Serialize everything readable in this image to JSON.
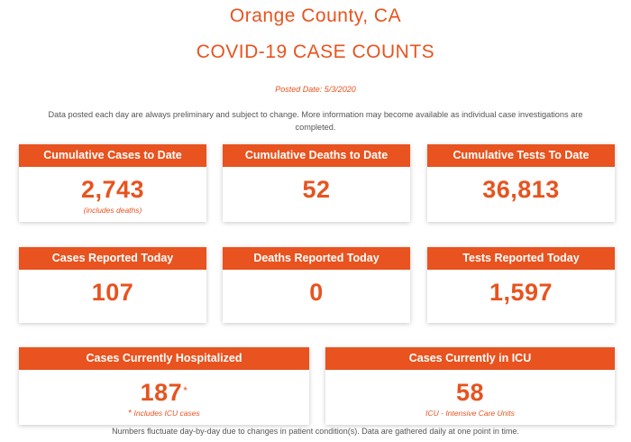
{
  "header": {
    "title": "Orange County, CA",
    "subtitle": "COVID-19 CASE COUNTS",
    "posted_date": "Posted Date: 5/3/2020",
    "disclaimer": "Data posted each day are always preliminary and subject to change. More information may become available as individual case investigations are completed."
  },
  "cards": {
    "cumulative_cases": {
      "label": "Cumulative Cases to Date",
      "value": "2,743",
      "note": "(includes deaths)"
    },
    "cumulative_deaths": {
      "label": "Cumulative Deaths to Date",
      "value": "52"
    },
    "cumulative_tests": {
      "label": "Cumulative Tests To Date",
      "value": "36,813"
    },
    "cases_today": {
      "label": "Cases Reported Today",
      "value": "107"
    },
    "deaths_today": {
      "label": "Deaths Reported Today",
      "value": "0"
    },
    "tests_today": {
      "label": "Tests Reported Today",
      "value": "1,597"
    },
    "hospitalized": {
      "label": "Cases Currently Hospitalized",
      "value": "187",
      "asterisk": "*",
      "note_asterisk": "*",
      "note": "Includes ICU cases"
    },
    "icu": {
      "label": "Cases Currently in ICU",
      "value": "58",
      "note": "ICU - Intensive Care Units"
    }
  },
  "footer": {
    "text": "Numbers fluctuate day-by-day due to changes in patient condition(s). Data are gathered daily at one point in time."
  },
  "colors": {
    "accent": "#e8531f",
    "text_gray": "#555555",
    "background": "#ffffff"
  }
}
